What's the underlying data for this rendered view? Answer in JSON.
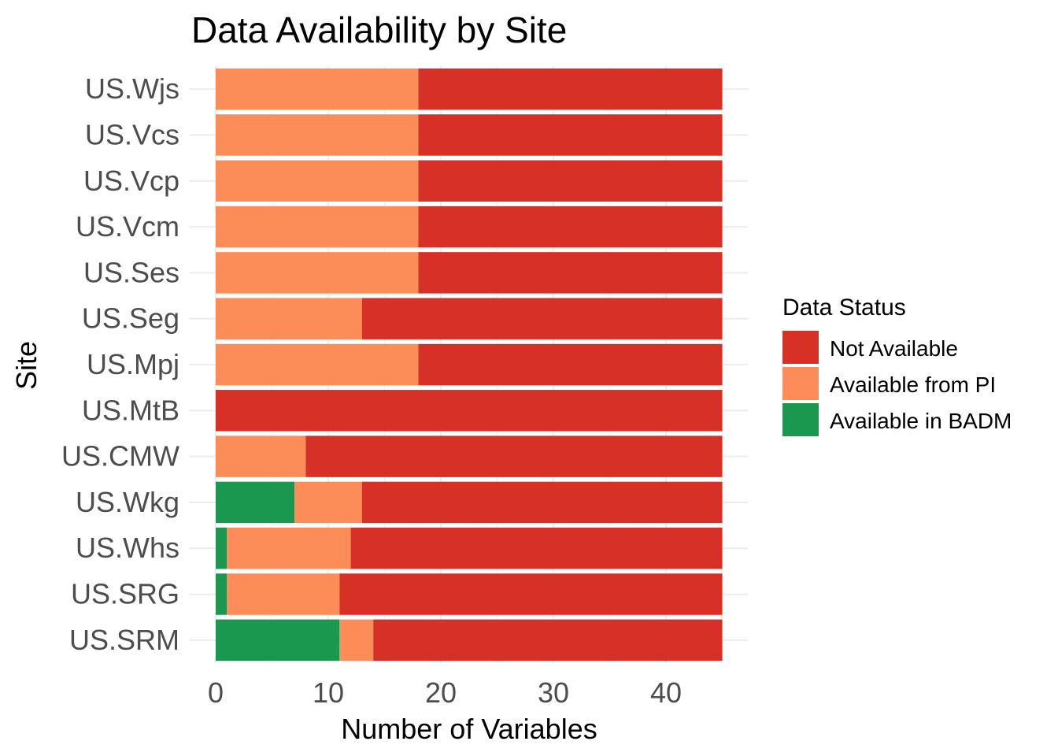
{
  "chart_data": {
    "type": "bar",
    "orientation": "horizontal",
    "stacked": true,
    "title": "Data Availability by Site",
    "xlabel": "Number of Variables",
    "ylabel": "Site",
    "xlim": [
      0,
      47
    ],
    "x_ticks": [
      0,
      10,
      20,
      30,
      40
    ],
    "grid": true,
    "legend": {
      "title": "Data Status",
      "placement": "right",
      "entries": [
        "Not Available",
        "Available from PI",
        "Available in BADM"
      ]
    },
    "categories": [
      "US.Wjs",
      "US.Vcs",
      "US.Vcp",
      "US.Vcm",
      "US.Ses",
      "US.Seg",
      "US.Mpj",
      "US.MtB",
      "US.CMW",
      "US.Wkg",
      "US.Whs",
      "US.SRG",
      "US.SRM"
    ],
    "series": [
      {
        "name": "Available in BADM",
        "color": "#1a9850",
        "values": [
          0,
          0,
          0,
          0,
          0,
          0,
          0,
          0,
          0,
          7,
          1,
          1,
          11
        ]
      },
      {
        "name": "Available from PI",
        "color": "#fc8d59",
        "values": [
          18,
          18,
          18,
          18,
          18,
          13,
          18,
          0,
          8,
          6,
          11,
          10,
          3
        ]
      },
      {
        "name": "Not Available",
        "color": "#d73027",
        "values": [
          27,
          27,
          27,
          27,
          27,
          32,
          27,
          45,
          37,
          32,
          33,
          34,
          31
        ]
      }
    ]
  }
}
